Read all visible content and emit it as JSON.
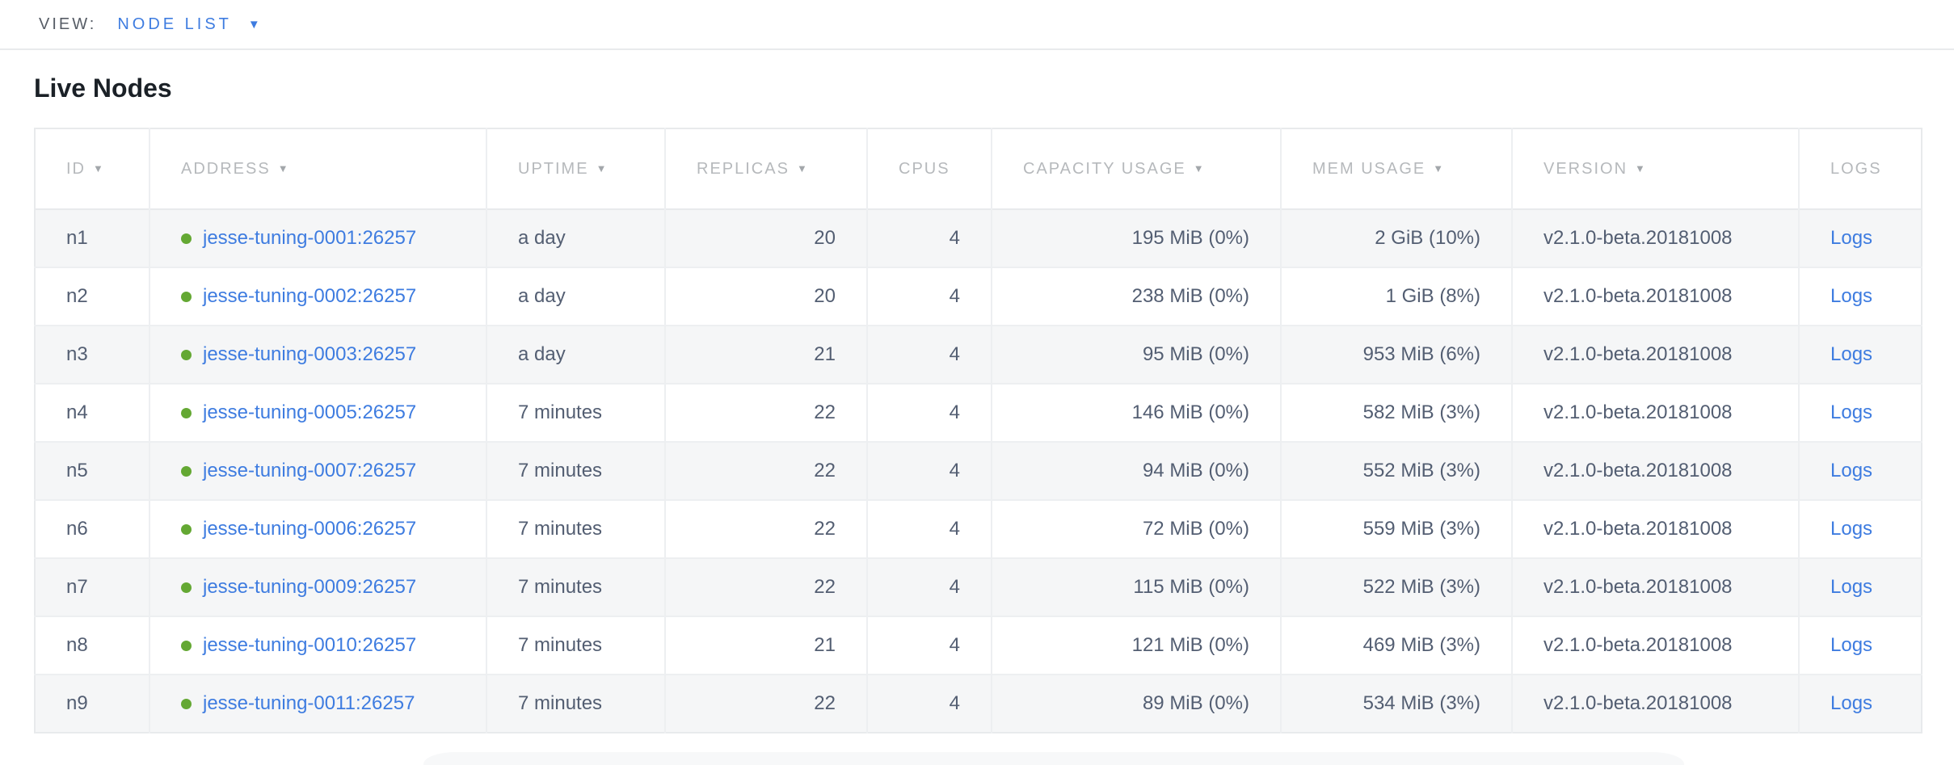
{
  "view_bar": {
    "label": "VIEW:",
    "selected": "NODE LIST",
    "caret": "▼"
  },
  "page": {
    "title": "Live Nodes"
  },
  "table": {
    "columns": [
      {
        "key": "id",
        "label": "ID",
        "sortable": true,
        "align": "left"
      },
      {
        "key": "address",
        "label": "ADDRESS",
        "sortable": true,
        "align": "left"
      },
      {
        "key": "uptime",
        "label": "UPTIME",
        "sortable": true,
        "align": "left"
      },
      {
        "key": "replicas",
        "label": "REPLICAS",
        "sortable": true,
        "align": "right"
      },
      {
        "key": "cpus",
        "label": "CPUS",
        "sortable": false,
        "align": "right"
      },
      {
        "key": "capacity",
        "label": "CAPACITY USAGE",
        "sortable": true,
        "align": "right"
      },
      {
        "key": "mem",
        "label": "MEM USAGE",
        "sortable": true,
        "align": "right"
      },
      {
        "key": "version",
        "label": "VERSION",
        "sortable": true,
        "align": "left"
      },
      {
        "key": "logs",
        "label": "LOGS",
        "sortable": false,
        "align": "left"
      }
    ],
    "sort_icon": "▼",
    "rows": [
      {
        "id": "n1",
        "status": "live",
        "address": "jesse-tuning-0001:26257",
        "uptime": "a day",
        "replicas": "20",
        "cpus": "4",
        "capacity": "195 MiB (0%)",
        "mem": "2 GiB (10%)",
        "version": "v2.1.0-beta.20181008",
        "logs": "Logs"
      },
      {
        "id": "n2",
        "status": "live",
        "address": "jesse-tuning-0002:26257",
        "uptime": "a day",
        "replicas": "20",
        "cpus": "4",
        "capacity": "238 MiB (0%)",
        "mem": "1 GiB (8%)",
        "version": "v2.1.0-beta.20181008",
        "logs": "Logs"
      },
      {
        "id": "n3",
        "status": "live",
        "address": "jesse-tuning-0003:26257",
        "uptime": "a day",
        "replicas": "21",
        "cpus": "4",
        "capacity": "95 MiB (0%)",
        "mem": "953 MiB (6%)",
        "version": "v2.1.0-beta.20181008",
        "logs": "Logs"
      },
      {
        "id": "n4",
        "status": "live",
        "address": "jesse-tuning-0005:26257",
        "uptime": "7 minutes",
        "replicas": "22",
        "cpus": "4",
        "capacity": "146 MiB (0%)",
        "mem": "582 MiB (3%)",
        "version": "v2.1.0-beta.20181008",
        "logs": "Logs"
      },
      {
        "id": "n5",
        "status": "live",
        "address": "jesse-tuning-0007:26257",
        "uptime": "7 minutes",
        "replicas": "22",
        "cpus": "4",
        "capacity": "94 MiB (0%)",
        "mem": "552 MiB (3%)",
        "version": "v2.1.0-beta.20181008",
        "logs": "Logs"
      },
      {
        "id": "n6",
        "status": "live",
        "address": "jesse-tuning-0006:26257",
        "uptime": "7 minutes",
        "replicas": "22",
        "cpus": "4",
        "capacity": "72 MiB (0%)",
        "mem": "559 MiB (3%)",
        "version": "v2.1.0-beta.20181008",
        "logs": "Logs"
      },
      {
        "id": "n7",
        "status": "live",
        "address": "jesse-tuning-0009:26257",
        "uptime": "7 minutes",
        "replicas": "22",
        "cpus": "4",
        "capacity": "115 MiB (0%)",
        "mem": "522 MiB (3%)",
        "version": "v2.1.0-beta.20181008",
        "logs": "Logs"
      },
      {
        "id": "n8",
        "status": "live",
        "address": "jesse-tuning-0010:26257",
        "uptime": "7 minutes",
        "replicas": "21",
        "cpus": "4",
        "capacity": "121 MiB (0%)",
        "mem": "469 MiB (3%)",
        "version": "v2.1.0-beta.20181008",
        "logs": "Logs"
      },
      {
        "id": "n9",
        "status": "live",
        "address": "jesse-tuning-0011:26257",
        "uptime": "7 minutes",
        "replicas": "22",
        "cpus": "4",
        "capacity": "89 MiB (0%)",
        "mem": "534 MiB (3%)",
        "version": "v2.1.0-beta.20181008",
        "logs": "Logs"
      }
    ]
  },
  "colors": {
    "accent_blue": "#3e7ce0",
    "live_green": "#64a833",
    "header_gray": "#b6b9bc",
    "cell_slate": "#535e72"
  }
}
